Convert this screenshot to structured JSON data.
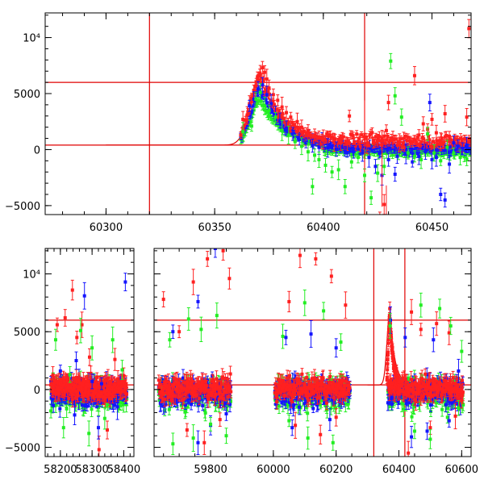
{
  "colors": {
    "red": "#ff2020",
    "blue": "#1515ff",
    "green": "#22ee22",
    "reference_lines": "#e00000"
  },
  "chart_data": [
    {
      "type": "scatter",
      "panel": "top",
      "title": "",
      "xlabel": "",
      "ylabel": "",
      "xlim": [
        60272,
        60468
      ],
      "ylim": [
        -5800,
        12200
      ],
      "x_ticks": [
        60300,
        60350,
        60400,
        60450
      ],
      "y_ticks": [
        -5000,
        0,
        5000,
        10000
      ],
      "x_tick_labels": [
        "60300",
        "60350",
        "60400",
        "60450"
      ],
      "y_tick_labels": [
        "−5000",
        "0",
        "5000",
        "10⁴"
      ],
      "horizontal_lines": [
        400,
        6000
      ],
      "vertical_lines": [
        60320,
        60419
      ],
      "model_curve": {
        "baseline": 400,
        "peak_x": 60371,
        "peak_y": 6300,
        "rise_width": 4.5,
        "decay_time": 11,
        "x_start": 60300,
        "x_end": 60468
      },
      "series": [
        {
          "color_key": "red",
          "points": [
            [
              60363,
              2700
            ],
            [
              60365,
              3100
            ],
            [
              60366,
              4100
            ],
            [
              60367,
              4600
            ],
            [
              60368,
              5300
            ],
            [
              60369,
              5700
            ],
            [
              60370,
              6200
            ],
            [
              60371,
              6700
            ],
            [
              60372,
              7300
            ],
            [
              60373,
              6900
            ],
            [
              60374,
              6300
            ],
            [
              60375,
              5500
            ],
            [
              60377,
              4900
            ],
            [
              60379,
              4400
            ],
            [
              60381,
              3800
            ],
            [
              60383,
              3300
            ],
            [
              60385,
              2900
            ],
            [
              60388,
              2500
            ],
            [
              60390,
              2000
            ],
            [
              60393,
              1700
            ],
            [
              60396,
              1300
            ],
            [
              60398,
              1050
            ],
            [
              60400,
              900
            ],
            [
              60402,
              700
            ],
            [
              60405,
              650
            ],
            [
              60408,
              600
            ],
            [
              60411,
              500
            ],
            [
              60414,
              450
            ],
            [
              60417,
              500
            ],
            [
              60420,
              420
            ],
            [
              60423,
              600
            ],
            [
              60425,
              800
            ],
            [
              60427,
              1000
            ],
            [
              60429,
              1700
            ],
            [
              60430,
              4200
            ],
            [
              60432,
              900
            ],
            [
              60435,
              600
            ],
            [
              60437,
              1000
            ],
            [
              60440,
              700
            ],
            [
              60442,
              6600
            ],
            [
              60444,
              1300
            ],
            [
              60446,
              2300
            ],
            [
              60448,
              1800
            ],
            [
              60450,
              2700
            ],
            [
              60452,
              1500
            ],
            [
              60454,
              700
            ],
            [
              60456,
              3200
            ],
            [
              60458,
              1200
            ],
            [
              60460,
              700
            ],
            [
              60462,
              500
            ],
            [
              60464,
              400
            ],
            [
              60466,
              2900
            ],
            [
              60467,
              10800
            ],
            [
              60412,
              3000
            ],
            [
              60421,
              400
            ],
            [
              60426,
              -6000
            ],
            [
              60428,
              -4900
            ],
            [
              60455,
              600
            ]
          ]
        },
        {
          "color_key": "blue",
          "points": [
            [
              60366,
              3900
            ],
            [
              60368,
              4500
            ],
            [
              60370,
              5400
            ],
            [
              60372,
              5800
            ],
            [
              60374,
              4900
            ],
            [
              60376,
              4100
            ],
            [
              60378,
              3200
            ],
            [
              60380,
              2600
            ],
            [
              60383,
              1900
            ],
            [
              60386,
              1400
            ],
            [
              60389,
              900
            ],
            [
              60392,
              600
            ],
            [
              60395,
              350
            ],
            [
              60398,
              200
            ],
            [
              60402,
              150
            ],
            [
              60406,
              50
            ],
            [
              60410,
              -150
            ],
            [
              60414,
              -200
            ],
            [
              60418,
              -300
            ],
            [
              60421,
              -700
            ],
            [
              60424,
              -1500
            ],
            [
              60427,
              -2300
            ],
            [
              60430,
              -900
            ],
            [
              60434,
              -600
            ],
            [
              60438,
              -400
            ],
            [
              60441,
              -1100
            ],
            [
              60444,
              -600
            ],
            [
              60447,
              -200
            ],
            [
              60450,
              -900
            ],
            [
              60452,
              -700
            ],
            [
              60454,
              -4000
            ],
            [
              60456,
              -4500
            ],
            [
              60458,
              -1300
            ],
            [
              60460,
              600
            ],
            [
              60462,
              300
            ],
            [
              60464,
              100
            ],
            [
              60466,
              400
            ],
            [
              60449,
              4200
            ],
            [
              60433,
              -2200
            ]
          ]
        },
        {
          "color_key": "green",
          "points": [
            [
              60363,
              1600
            ],
            [
              60367,
              2100
            ],
            [
              60369,
              4500
            ],
            [
              60371,
              5100
            ],
            [
              60373,
              3900
            ],
            [
              60375,
              3500
            ],
            [
              60378,
              2900
            ],
            [
              60381,
              1700
            ],
            [
              60384,
              1300
            ],
            [
              60387,
              700
            ],
            [
              60390,
              300
            ],
            [
              60393,
              -200
            ],
            [
              60396,
              -500
            ],
            [
              60398,
              -900
            ],
            [
              60401,
              -1400
            ],
            [
              60404,
              -2000
            ],
            [
              60407,
              -1800
            ],
            [
              60410,
              -3300
            ],
            [
              60413,
              -1100
            ],
            [
              60416,
              -700
            ],
            [
              60419,
              -2300
            ],
            [
              60422,
              -4300
            ],
            [
              60425,
              -2100
            ],
            [
              60428,
              -1500
            ],
            [
              60431,
              7900
            ],
            [
              60433,
              4800
            ],
            [
              60436,
              2900
            ],
            [
              60439,
              -300
            ],
            [
              60442,
              -600
            ],
            [
              60445,
              -900
            ],
            [
              60448,
              1400
            ],
            [
              60451,
              -300
            ],
            [
              60454,
              -1000
            ],
            [
              60457,
              200
            ],
            [
              60460,
              -300
            ],
            [
              60463,
              -700
            ],
            [
              60466,
              -900
            ],
            [
              60395,
              -3300
            ]
          ]
        }
      ]
    },
    {
      "type": "scatter",
      "panel": "bottom",
      "title": "",
      "xlabel": "",
      "ylabel": "",
      "ylim": [
        -5800,
        12200
      ],
      "y_ticks": [
        -5000,
        0,
        5000,
        10000
      ],
      "y_tick_labels": [
        "−5000",
        "0",
        "5000",
        "10⁴"
      ],
      "horizontal_lines": [
        400,
        6000
      ],
      "vertical_lines": [
        60320,
        60419
      ],
      "segments": [
        {
          "xlim": [
            58152,
            58432
          ],
          "x_ticks": [
            58200,
            58300,
            58400
          ],
          "x_tick_labels": [
            "58200",
            "58300",
            "58400"
          ],
          "season": [
            58170,
            58410
          ]
        },
        {
          "xlim": [
            59620,
            60630
          ],
          "x_ticks": [
            59800,
            60000,
            60200,
            60400,
            60600
          ],
          "x_tick_labels": [
            "59800",
            "60000",
            "60200",
            "60400",
            "60600"
          ],
          "seasons": [
            [
              59635,
              59865
            ],
            [
              60005,
              60245
            ],
            [
              60365,
              60605
            ]
          ]
        }
      ],
      "notable_points": {
        "red": [
          [
            58190,
            5600
          ],
          [
            58215,
            6200
          ],
          [
            58238,
            8600
          ],
          [
            58252,
            4500
          ],
          [
            58268,
            5600
          ],
          [
            58292,
            2800
          ],
          [
            58322,
            -5200
          ],
          [
            58348,
            -3500
          ],
          [
            58372,
            2600
          ],
          [
            58400,
            1200
          ],
          [
            59650,
            7800
          ],
          [
            59700,
            5000
          ],
          [
            59745,
            9300
          ],
          [
            59790,
            11300
          ],
          [
            59840,
            12000
          ],
          [
            59860,
            9600
          ],
          [
            59725,
            -3500
          ],
          [
            59780,
            -4600
          ],
          [
            59830,
            -2600
          ],
          [
            60050,
            7600
          ],
          [
            60085,
            11600
          ],
          [
            60135,
            11300
          ],
          [
            60185,
            9800
          ],
          [
            60230,
            7300
          ],
          [
            60070,
            -3100
          ],
          [
            60150,
            -3900
          ],
          [
            60200,
            -2400
          ],
          [
            60371,
            7000
          ],
          [
            60440,
            6700
          ],
          [
            60470,
            5200
          ],
          [
            60520,
            5700
          ],
          [
            60560,
            4900
          ],
          [
            60430,
            -5500
          ],
          [
            60500,
            -3300
          ],
          [
            60580,
            -2300
          ]
        ],
        "blue": [
          [
            58200,
            1600
          ],
          [
            58250,
            2500
          ],
          [
            58276,
            8100
          ],
          [
            58300,
            700
          ],
          [
            58330,
            500
          ],
          [
            58405,
            9300
          ],
          [
            58245,
            -2200
          ],
          [
            58320,
            -3300
          ],
          [
            58380,
            -1500
          ],
          [
            59680,
            5000
          ],
          [
            59760,
            7600
          ],
          [
            59815,
            12200
          ],
          [
            59760,
            -4600
          ],
          [
            59800,
            -3100
          ],
          [
            59850,
            -2100
          ],
          [
            60040,
            4500
          ],
          [
            60120,
            4800
          ],
          [
            60200,
            3600
          ],
          [
            60060,
            -3300
          ],
          [
            60180,
            -2600
          ],
          [
            60373,
            6000
          ],
          [
            60420,
            4500
          ],
          [
            60510,
            4300
          ],
          [
            60590,
            1600
          ],
          [
            60440,
            -4100
          ],
          [
            60490,
            -3600
          ],
          [
            60560,
            -2700
          ]
        ],
        "green": [
          [
            58185,
            4300
          ],
          [
            58230,
            1300
          ],
          [
            58264,
            5100
          ],
          [
            58300,
            3600
          ],
          [
            58365,
            4300
          ],
          [
            58395,
            1700
          ],
          [
            58210,
            -3300
          ],
          [
            58290,
            -3800
          ],
          [
            58340,
            -2500
          ],
          [
            59670,
            4300
          ],
          [
            59730,
            6100
          ],
          [
            59770,
            5200
          ],
          [
            59820,
            6400
          ],
          [
            59680,
            -4700
          ],
          [
            59745,
            -4200
          ],
          [
            59800,
            -3000
          ],
          [
            59850,
            -4000
          ],
          [
            60030,
            4600
          ],
          [
            60100,
            7500
          ],
          [
            60160,
            6800
          ],
          [
            60215,
            4100
          ],
          [
            60050,
            -2700
          ],
          [
            60110,
            -4200
          ],
          [
            60190,
            -4600
          ],
          [
            60372,
            5500
          ],
          [
            60470,
            7300
          ],
          [
            60530,
            7000
          ],
          [
            60565,
            5500
          ],
          [
            60600,
            3300
          ],
          [
            60450,
            -3600
          ],
          [
            60500,
            -4300
          ],
          [
            60590,
            -1600
          ]
        ]
      }
    }
  ]
}
